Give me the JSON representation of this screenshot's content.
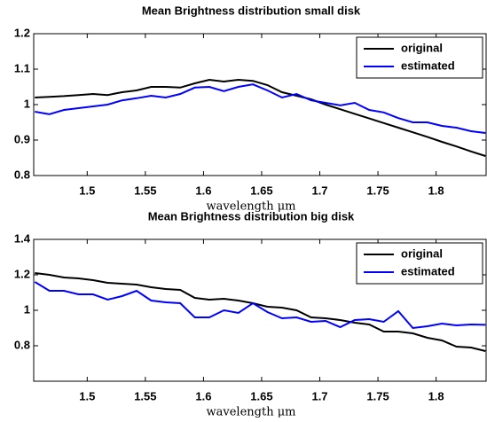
{
  "chart_data": [
    {
      "type": "line",
      "title": "Mean Brightness distribution small disk",
      "xlabel": "wavelength μm",
      "x": [
        1.455,
        1.4675,
        1.48,
        1.4925,
        1.505,
        1.5175,
        1.53,
        1.5425,
        1.555,
        1.5675,
        1.58,
        1.5925,
        1.605,
        1.6175,
        1.63,
        1.6425,
        1.655,
        1.6675,
        1.68,
        1.6925,
        1.705,
        1.7175,
        1.73,
        1.7425,
        1.755,
        1.7675,
        1.78,
        1.7925,
        1.805,
        1.8175,
        1.83,
        1.8425
      ],
      "series": [
        {
          "name": "original",
          "color": "#000000",
          "values": [
            1.02,
            1.022,
            1.024,
            1.027,
            1.03,
            1.027,
            1.035,
            1.04,
            1.05,
            1.05,
            1.048,
            1.06,
            1.07,
            1.065,
            1.07,
            1.067,
            1.055,
            1.035,
            1.025,
            1.015,
            1.0,
            0.987,
            0.974,
            0.961,
            0.948,
            0.935,
            0.922,
            0.909,
            0.895,
            0.882,
            0.868,
            0.855
          ]
        },
        {
          "name": "estimated",
          "color": "#0000ff",
          "values": [
            0.98,
            0.973,
            0.985,
            0.99,
            0.995,
            1.0,
            1.012,
            1.018,
            1.025,
            1.02,
            1.03,
            1.048,
            1.05,
            1.038,
            1.05,
            1.057,
            1.04,
            1.02,
            1.03,
            1.012,
            1.005,
            0.998,
            1.005,
            0.985,
            0.978,
            0.962,
            0.95,
            0.95,
            0.94,
            0.935,
            0.925,
            0.92
          ]
        }
      ],
      "xlim": [
        1.454,
        1.843
      ],
      "xticks": [
        1.5,
        1.55,
        1.6,
        1.65,
        1.7,
        1.75,
        1.8
      ],
      "ylim": [
        0.8,
        1.2
      ],
      "yticks": [
        0.8,
        0.9,
        1,
        1.1,
        1.2
      ],
      "legend": "upper right"
    },
    {
      "type": "line",
      "title": "Mean Brightness distribution big disk",
      "xlabel": "wavelength μm",
      "x": [
        1.455,
        1.4675,
        1.48,
        1.4925,
        1.505,
        1.5175,
        1.53,
        1.5425,
        1.555,
        1.5675,
        1.58,
        1.5925,
        1.605,
        1.6175,
        1.63,
        1.6425,
        1.655,
        1.6675,
        1.68,
        1.6925,
        1.705,
        1.7175,
        1.73,
        1.7425,
        1.755,
        1.7675,
        1.78,
        1.7925,
        1.805,
        1.8175,
        1.83,
        1.8425
      ],
      "series": [
        {
          "name": "original",
          "color": "#000000",
          "values": [
            1.21,
            1.2,
            1.185,
            1.18,
            1.17,
            1.155,
            1.15,
            1.145,
            1.13,
            1.12,
            1.115,
            1.07,
            1.06,
            1.065,
            1.055,
            1.04,
            1.02,
            1.015,
            1.0,
            0.96,
            0.955,
            0.945,
            0.93,
            0.92,
            0.88,
            0.88,
            0.87,
            0.845,
            0.83,
            0.795,
            0.79,
            0.77
          ]
        },
        {
          "name": "estimated",
          "color": "#0000ff",
          "values": [
            1.16,
            1.11,
            1.11,
            1.09,
            1.09,
            1.06,
            1.08,
            1.11,
            1.055,
            1.045,
            1.04,
            0.96,
            0.96,
            1.0,
            0.985,
            1.04,
            0.99,
            0.955,
            0.96,
            0.935,
            0.94,
            0.905,
            0.945,
            0.95,
            0.935,
            0.995,
            0.9,
            0.91,
            0.925,
            0.915,
            0.92,
            0.918
          ]
        }
      ],
      "xlim": [
        1.454,
        1.843
      ],
      "xticks": [
        1.5,
        1.55,
        1.6,
        1.65,
        1.7,
        1.75,
        1.8
      ],
      "ylim": [
        0.6,
        1.4
      ],
      "yticks": [
        0.8,
        1,
        1.2,
        1.4
      ],
      "legend": "upper right"
    }
  ]
}
